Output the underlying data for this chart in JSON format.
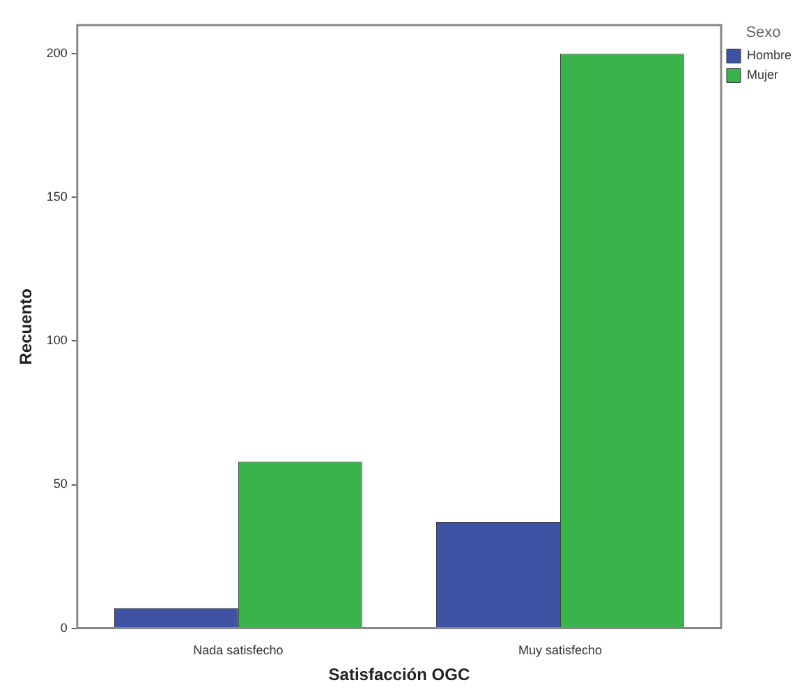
{
  "chart_data": {
    "type": "bar",
    "xlabel": "Satisfacción OGC",
    "ylabel": "Recuento",
    "legend_title": "Sexo",
    "categories": [
      "Nada satisfecho",
      "Muy satisfecho"
    ],
    "series": [
      {
        "name": "Hombre",
        "color": "#3e53a4",
        "values": [
          7,
          37
        ]
      },
      {
        "name": "Mujer",
        "color": "#38b44a",
        "values": [
          58,
          200
        ]
      }
    ],
    "ylim": [
      0,
      210
    ],
    "yticks": [
      0,
      50,
      100,
      150,
      200
    ],
    "grid": false,
    "legend": "right"
  }
}
